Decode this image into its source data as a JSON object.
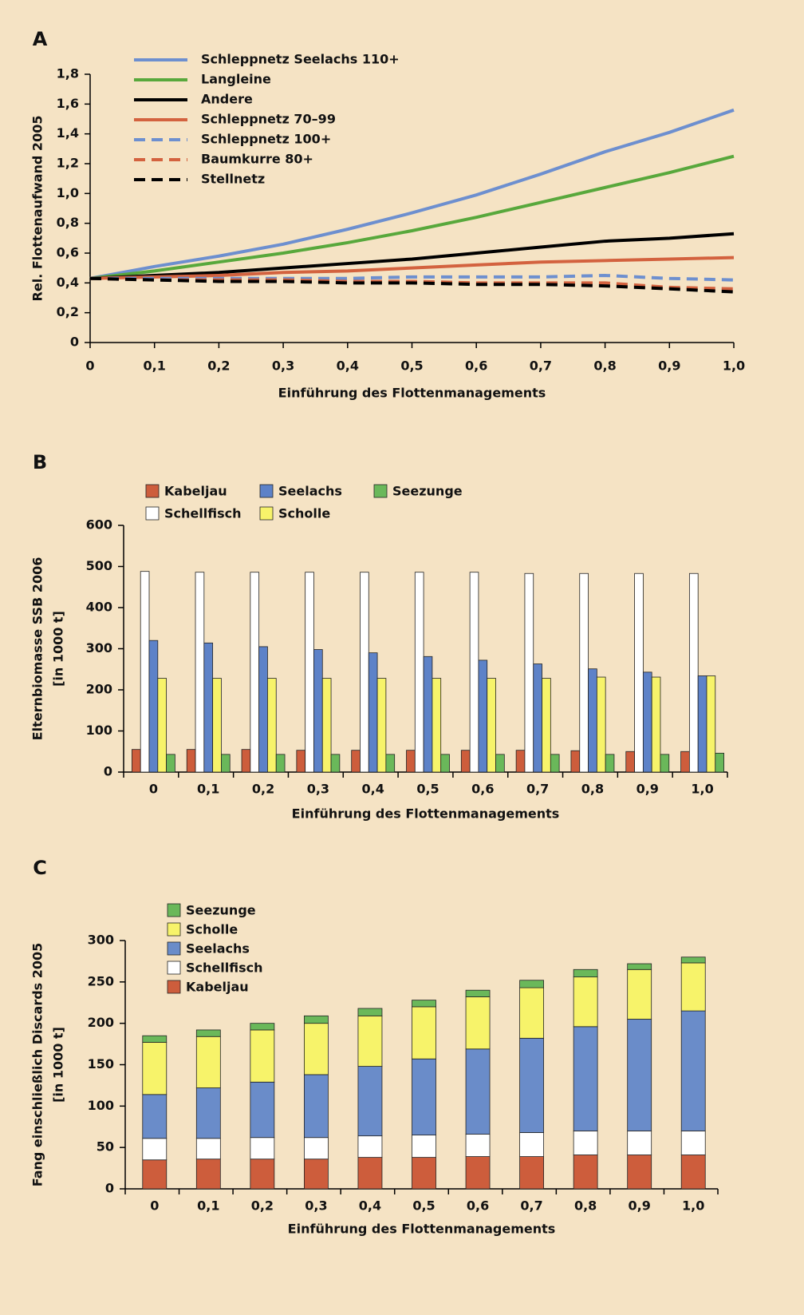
{
  "chart_data": [
    {
      "type": "line",
      "label": "A",
      "ylabel": "Rel. Flottenaufwand 2005",
      "xlabel": "Einführung des Flottenmanagements",
      "x": [
        0,
        0.1,
        0.2,
        0.3,
        0.4,
        0.5,
        0.6,
        0.7,
        0.8,
        0.9,
        1
      ],
      "xlim": [
        0,
        1
      ],
      "xticks": [
        0,
        {
          "value": 0.1,
          "label": "0,1"
        },
        {
          "value": 0.2,
          "label": "0,2"
        },
        {
          "value": 0.3,
          "label": "0,3"
        },
        {
          "value": 0.4,
          "label": "0,4"
        },
        {
          "value": 0.5,
          "label": "0,5"
        },
        {
          "value": 0.6,
          "label": "0,6"
        },
        {
          "value": 0.7,
          "label": "0,7"
        },
        {
          "value": 0.8,
          "label": "0,8"
        },
        {
          "value": 0.9,
          "label": "0,9"
        },
        {
          "value": 1,
          "label": "1,0"
        }
      ],
      "ylim": [
        0,
        1.8
      ],
      "yticks": [
        0,
        {
          "value": 0.2,
          "label": "0,2"
        },
        {
          "value": 0.4,
          "label": "0,4"
        },
        {
          "value": 0.6,
          "label": "0,6"
        },
        {
          "value": 0.8,
          "label": "0,8"
        },
        {
          "value": 1,
          "label": "1,0"
        },
        {
          "value": 1.2,
          "label": "1,2"
        },
        {
          "value": 1.4,
          "label": "1,4"
        },
        {
          "value": 1.6,
          "label": "1,6"
        },
        {
          "value": 1.8,
          "label": "1,8"
        }
      ],
      "series": [
        {
          "name": "Schleppnetz Seelachs 110+",
          "color": "#6d8fcf",
          "dashed": false,
          "values": [
            0.43,
            0.51,
            0.58,
            0.66,
            0.76,
            0.87,
            0.99,
            1.13,
            1.28,
            1.41,
            1.56
          ]
        },
        {
          "name": "Langleine",
          "color": "#58a83c",
          "dashed": false,
          "values": [
            0.43,
            0.48,
            0.54,
            0.6,
            0.67,
            0.75,
            0.84,
            0.94,
            1.04,
            1.14,
            1.25
          ]
        },
        {
          "name": "Andere",
          "color": "#000000",
          "dashed": false,
          "values": [
            0.43,
            0.45,
            0.47,
            0.5,
            0.53,
            0.56,
            0.6,
            0.64,
            0.68,
            0.7,
            0.73
          ]
        },
        {
          "name": "Schleppnetz 70–99",
          "color": "#d3623f",
          "dashed": false,
          "values": [
            0.43,
            0.44,
            0.45,
            0.47,
            0.48,
            0.5,
            0.52,
            0.54,
            0.55,
            0.56,
            0.57
          ]
        },
        {
          "name": "Schleppnetz 100+",
          "color": "#6d8fcf",
          "dashed": true,
          "values": [
            0.43,
            0.43,
            0.43,
            0.43,
            0.43,
            0.44,
            0.44,
            0.44,
            0.45,
            0.43,
            0.42
          ]
        },
        {
          "name": "Baumkurre 80+",
          "color": "#d3623f",
          "dashed": true,
          "values": [
            0.43,
            0.42,
            0.42,
            0.42,
            0.41,
            0.41,
            0.4,
            0.4,
            0.4,
            0.37,
            0.36
          ]
        },
        {
          "name": "Stellnetz",
          "color": "#000000",
          "dashed": true,
          "values": [
            0.43,
            0.42,
            0.41,
            0.41,
            0.4,
            0.4,
            0.39,
            0.39,
            0.38,
            0.36,
            0.34
          ]
        }
      ]
    },
    {
      "type": "bar",
      "label": "B",
      "ylabel": [
        "Elternbiomasse SSB 2006",
        "[in 1000 t]"
      ],
      "xlabel": "Einführung des Flottenmanagements",
      "categories": [
        "0",
        "0,1",
        "0,2",
        "0,3",
        "0,4",
        "0,5",
        "0,6",
        "0,7",
        "0,8",
        "0,9",
        "1,0"
      ],
      "ylim": [
        0,
        600
      ],
      "yticks": [
        0,
        100,
        200,
        300,
        400,
        500,
        600
      ],
      "series": [
        {
          "name": "Kabeljau",
          "color": "#cd5d3c",
          "values": [
            55,
            55,
            55,
            53,
            53,
            53,
            53,
            53,
            52,
            50,
            50
          ]
        },
        {
          "name": "Schellfisch",
          "color": "#ffffff",
          "values": [
            488,
            486,
            486,
            486,
            486,
            486,
            486,
            483,
            483,
            483,
            483
          ]
        },
        {
          "name": "Seelachs",
          "color": "#5d82c8",
          "values": [
            320,
            314,
            305,
            298,
            290,
            281,
            272,
            263,
            251,
            243,
            234
          ]
        },
        {
          "name": "Scholle",
          "color": "#f7f36a",
          "values": [
            228,
            228,
            228,
            228,
            228,
            228,
            228,
            228,
            231,
            231,
            234
          ]
        },
        {
          "name": "Seezunge",
          "color": "#6ab85a",
          "values": [
            43,
            43,
            43,
            43,
            43,
            43,
            43,
            43,
            43,
            43,
            46
          ]
        }
      ]
    },
    {
      "type": "stacked_bar",
      "label": "C",
      "ylabel": [
        "Fang einschließlich Discards 2005",
        "[in 1000 t]"
      ],
      "xlabel": "Einführung des Flottenmanagements",
      "categories": [
        "0",
        "0,1",
        "0,2",
        "0,3",
        "0,4",
        "0,5",
        "0,6",
        "0,7",
        "0,8",
        "0,9",
        "1,0"
      ],
      "ylim": [
        0,
        300
      ],
      "yticks": [
        0,
        50,
        100,
        150,
        200,
        250,
        300
      ],
      "series": [
        {
          "name": "Kabeljau",
          "color": "#cd5d3c",
          "values": [
            35,
            36,
            36,
            36,
            38,
            38,
            39,
            39,
            41,
            41,
            41
          ]
        },
        {
          "name": "Schellfisch",
          "color": "#ffffff",
          "values": [
            26,
            25,
            26,
            26,
            26,
            27,
            27,
            29,
            29,
            29,
            29
          ]
        },
        {
          "name": "Seelachs",
          "color": "#6a8cc9",
          "values": [
            53,
            61,
            67,
            76,
            84,
            92,
            103,
            114,
            126,
            135,
            145
          ]
        },
        {
          "name": "Scholle",
          "color": "#f7f36a",
          "values": [
            63,
            62,
            63,
            62,
            61,
            63,
            63,
            61,
            60,
            60,
            58
          ]
        },
        {
          "name": "Seezunge",
          "color": "#6ab85a",
          "values": [
            8,
            8,
            8,
            9,
            9,
            8,
            8,
            9,
            9,
            7,
            7
          ]
        }
      ]
    }
  ]
}
